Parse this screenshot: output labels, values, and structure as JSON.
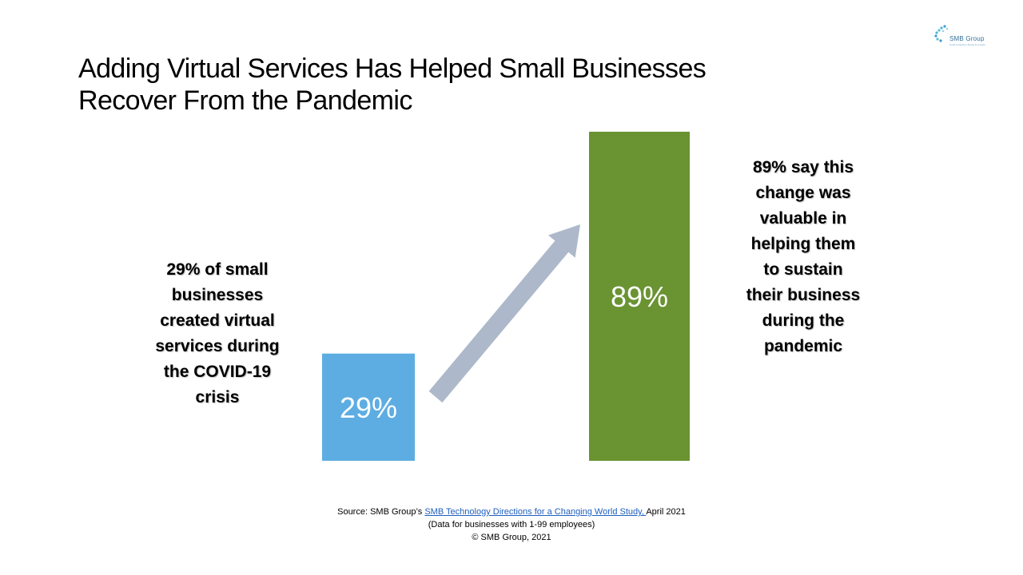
{
  "logo": {
    "name": "SMB Group",
    "tagline": "Small & Medium Business Insight"
  },
  "title": {
    "line1": "Adding Virtual Services Has Helped Small Businesses",
    "line2": "Recover From the Pandemic"
  },
  "chart_data": {
    "type": "bar",
    "categories": [
      "",
      ""
    ],
    "values": [
      29,
      89
    ],
    "data_labels": [
      "29%",
      "89%"
    ],
    "colors": [
      "#5DADE2",
      "#6A9332"
    ],
    "arrow_color": "#ADB9CA",
    "ylim": [
      0,
      100
    ],
    "title": "",
    "xlabel": "",
    "ylabel": "",
    "grid": false,
    "legend": "none"
  },
  "left_text": "29% of small businesses created virtual services during the COVID-19 crisis",
  "right_text": "89% say this change was valuable in helping them to sustain their business during the pandemic",
  "source": {
    "prefix": "Source:  SMB Group’s ",
    "link_text": "SMB Technology Directions for a Changing World Study, ",
    "suffix": "April 2021",
    "line2": "(Data for businesses with 1-99 employees)",
    "line3": "© SMB Group, 2021"
  }
}
